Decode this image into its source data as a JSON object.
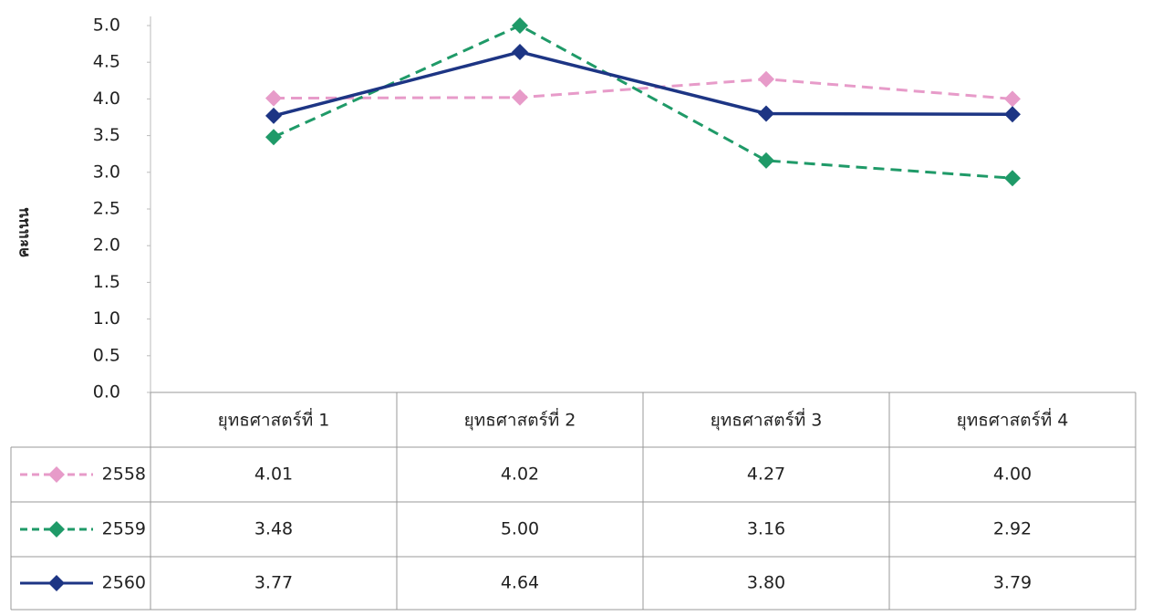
{
  "chart_data": {
    "type": "line",
    "y_label": "คะแนน",
    "categories": [
      "ยุทธศาสตร์ที่ 1",
      "ยุทธศาสตร์ที่ 2",
      "ยุทธศาสตร์ที่ 3",
      "ยุทธศาสตร์ที่ 4"
    ],
    "series": [
      {
        "name": "2558",
        "color": "#e79bc9",
        "dash": true,
        "values": [
          4.01,
          4.02,
          4.27,
          4.0
        ],
        "value_labels": [
          "4.01",
          "4.02",
          "4.27",
          "4.00"
        ]
      },
      {
        "name": "2559",
        "color": "#1f9a68",
        "dash": true,
        "values": [
          3.48,
          5.0,
          3.16,
          2.92
        ],
        "value_labels": [
          "3.48",
          "5.00",
          "3.16",
          "2.92"
        ]
      },
      {
        "name": "2560",
        "color": "#1d3584",
        "dash": false,
        "values": [
          3.77,
          4.64,
          3.8,
          3.79
        ],
        "value_labels": [
          "3.77",
          "4.64",
          "3.80",
          "3.79"
        ]
      }
    ],
    "ylim": [
      0,
      5
    ],
    "yticks": [
      {
        "value": 0,
        "label": "0.0"
      },
      0.5,
      {
        "value": 1,
        "label": "1.0"
      },
      1.5,
      {
        "value": 2,
        "label": "2.0"
      },
      2.5,
      {
        "value": 3,
        "label": "3.0"
      },
      3.5,
      {
        "value": 4,
        "label": "4.0"
      },
      4.5,
      {
        "value": 5,
        "label": "5.0"
      }
    ]
  }
}
